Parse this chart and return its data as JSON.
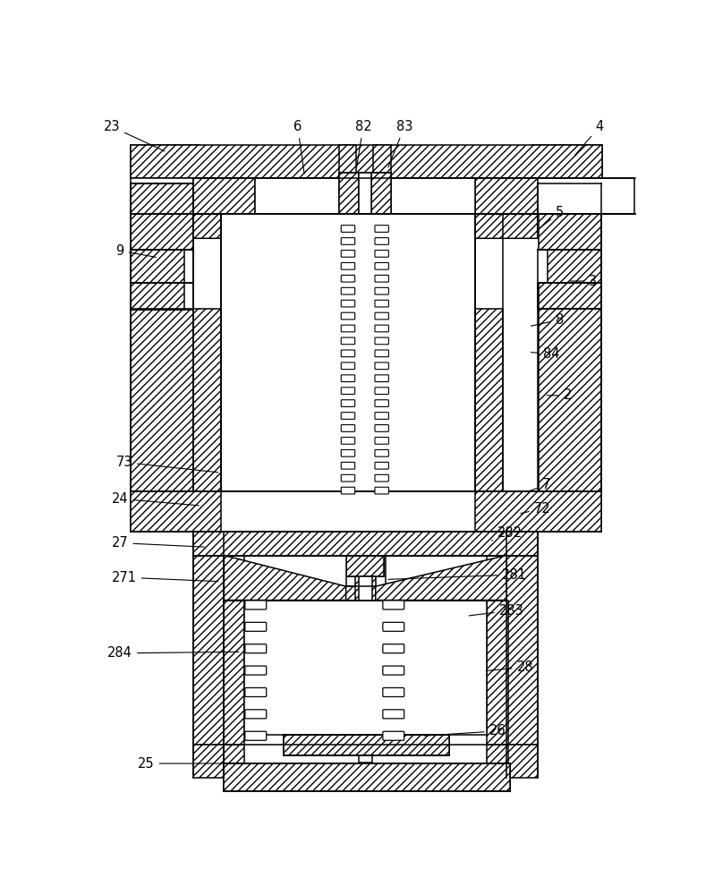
{
  "bg_color": "#ffffff",
  "lc": "#000000",
  "lw": 1.1,
  "hatch": "////",
  "leaders": [
    [
      "23",
      110,
      65,
      30,
      28
    ],
    [
      "6",
      310,
      100,
      300,
      28
    ],
    [
      "82",
      385,
      90,
      395,
      28
    ],
    [
      "83",
      430,
      90,
      455,
      28
    ],
    [
      "4",
      700,
      72,
      738,
      28
    ],
    [
      "5",
      648,
      178,
      680,
      152
    ],
    [
      "9",
      98,
      218,
      42,
      208
    ],
    [
      "3",
      692,
      252,
      728,
      252
    ],
    [
      "8",
      635,
      318,
      680,
      308
    ],
    [
      "84",
      635,
      355,
      668,
      358
    ],
    [
      "2",
      658,
      418,
      692,
      418
    ],
    [
      "73",
      188,
      530,
      48,
      515
    ],
    [
      "24",
      160,
      578,
      42,
      568
    ],
    [
      "7",
      632,
      558,
      660,
      548
    ],
    [
      "72",
      620,
      590,
      655,
      582
    ],
    [
      "27",
      168,
      638,
      42,
      632
    ],
    [
      "282",
      578,
      630,
      608,
      618
    ],
    [
      "271",
      188,
      688,
      48,
      682
    ],
    [
      "281",
      428,
      685,
      615,
      678
    ],
    [
      "283",
      545,
      738,
      610,
      730
    ],
    [
      "284",
      218,
      790,
      42,
      792
    ],
    [
      "28",
      570,
      818,
      630,
      812
    ],
    [
      "26",
      480,
      912,
      590,
      905
    ],
    [
      "25",
      240,
      952,
      80,
      952
    ]
  ]
}
